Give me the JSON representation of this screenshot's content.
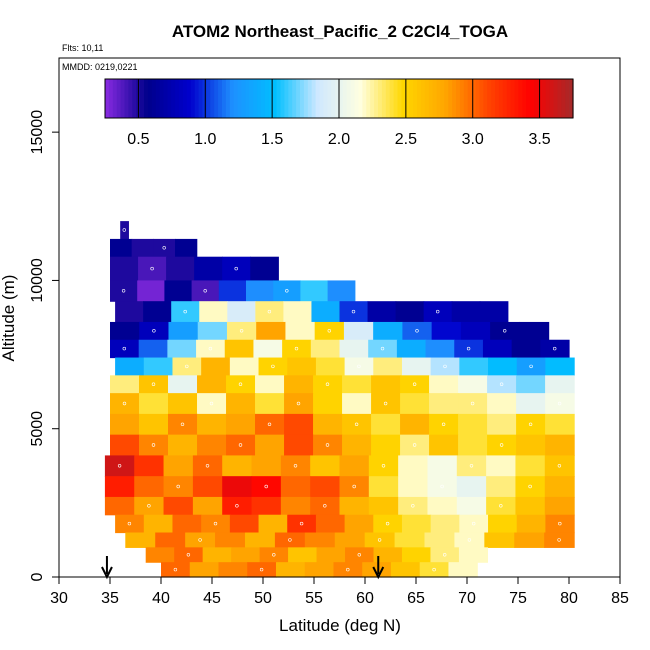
{
  "chart_data": {
    "type": "heatmap",
    "title": "ATOM2 Northeast_Pacific_2 C2Cl4_TOGA",
    "flights": "Flts: 10,11",
    "dates": "MMDD: 0219,0221",
    "xlabel": "Latitude (deg N)",
    "ylabel": "Altitude (m)",
    "xlim": [
      30,
      85
    ],
    "ylim": [
      0,
      17500
    ],
    "xticks": [
      "30",
      "35",
      "40",
      "45",
      "50",
      "55",
      "60",
      "65",
      "70",
      "75",
      "80",
      "85"
    ],
    "yticks": [
      {
        "value": 0,
        "label": "0"
      },
      {
        "value": 5000,
        "label": "5000"
      },
      {
        "value": 10000,
        "label": "10000"
      },
      {
        "value": 15000,
        "label": "15000"
      }
    ],
    "colorbar": {
      "min": 0.25,
      "max": 3.75,
      "ticks": [
        "0.5",
        "1.0",
        "1.5",
        "2.0",
        "2.5",
        "3.0",
        "3.5"
      ],
      "colors": [
        "#8a2be2",
        "#00008b",
        "#0000cd",
        "#1e90ff",
        "#00bfff",
        "#cfe8ff",
        "#ffffe0",
        "#ffd700",
        "#ffa500",
        "#ff4500",
        "#ff0000",
        "#a52a2a"
      ]
    },
    "layers": [
      {
        "alt0": 11400,
        "alt1": 12000,
        "x0": 36.0,
        "x1": 36.8,
        "values": [
          0.5
        ]
      },
      {
        "alt0": 10800,
        "alt1": 11400,
        "x0": 35.0,
        "x1": 43.5,
        "values": [
          0.6,
          0.5,
          0.5,
          0.6
        ]
      },
      {
        "alt0": 10000,
        "alt1": 10800,
        "x0": 35.0,
        "x1": 51.5,
        "values": [
          0.5,
          0.4,
          0.5,
          0.7,
          0.8,
          0.6
        ]
      },
      {
        "alt0": 9300,
        "alt1": 10000,
        "x0": 35.0,
        "x1": 59.0,
        "values": [
          0.5,
          0.3,
          0.6,
          0.4,
          1.0,
          1.2,
          1.3,
          1.6,
          1.2
        ]
      },
      {
        "alt0": 8600,
        "alt1": 9300,
        "x0": 35.5,
        "x1": 74.0,
        "values": [
          0.5,
          0.6,
          1.6,
          2.2,
          1.9,
          2.3,
          2.2,
          1.4,
          1.0,
          0.7,
          0.6,
          0.8,
          0.7,
          0.7
        ]
      },
      {
        "alt0": 8000,
        "alt1": 8600,
        "x0": 35.0,
        "x1": 78.0,
        "values": [
          0.6,
          0.8,
          1.3,
          1.7,
          2.3,
          2.8,
          2.2,
          2.5,
          1.9,
          1.4,
          1.1,
          0.9,
          0.8,
          0.6,
          0.6
        ]
      },
      {
        "alt0": 7400,
        "alt1": 8000,
        "x0": 35.0,
        "x1": 80.0,
        "values": [
          0.8,
          1.1,
          1.7,
          2.2,
          2.6,
          2.1,
          2.5,
          2.3,
          2.0,
          1.7,
          1.4,
          1.2,
          1.0,
          0.8,
          0.6,
          0.7
        ]
      },
      {
        "alt0": 6800,
        "alt1": 7400,
        "x0": 35.5,
        "x1": 80.5,
        "values": [
          1.4,
          1.6,
          2.3,
          2.7,
          2.2,
          2.5,
          2.6,
          2.4,
          2.1,
          2.3,
          2.0,
          1.8,
          1.6,
          1.5,
          1.3,
          1.5
        ]
      },
      {
        "alt0": 6200,
        "alt1": 6800,
        "x0": 35.0,
        "x1": 80.5,
        "values": [
          2.3,
          2.6,
          2.0,
          2.7,
          2.5,
          2.2,
          2.7,
          2.5,
          2.4,
          2.6,
          2.5,
          2.2,
          2.1,
          1.8,
          1.7,
          2.0
        ]
      },
      {
        "alt0": 5500,
        "alt1": 6200,
        "x0": 35.0,
        "x1": 80.5,
        "values": [
          2.7,
          2.4,
          2.6,
          2.2,
          2.7,
          2.4,
          2.8,
          2.5,
          2.2,
          2.6,
          2.4,
          2.3,
          2.3,
          2.2,
          2.0,
          2.1
        ]
      },
      {
        "alt0": 4800,
        "alt1": 5500,
        "x0": 35.0,
        "x1": 80.5,
        "values": [
          2.8,
          2.6,
          2.9,
          2.7,
          2.8,
          3.0,
          3.1,
          2.7,
          2.6,
          2.4,
          2.7,
          2.5,
          2.4,
          2.3,
          2.5,
          2.4
        ]
      },
      {
        "alt0": 4100,
        "alt1": 4800,
        "x0": 35.0,
        "x1": 80.5,
        "values": [
          3.1,
          2.9,
          2.7,
          2.9,
          3.0,
          2.8,
          3.1,
          2.9,
          2.7,
          2.5,
          2.3,
          2.6,
          2.4,
          2.5,
          2.6,
          2.7
        ]
      },
      {
        "alt0": 3400,
        "alt1": 4100,
        "x0": 34.5,
        "x1": 80.5,
        "values": [
          3.6,
          3.2,
          2.8,
          3.0,
          2.7,
          2.8,
          2.9,
          2.6,
          2.8,
          2.5,
          2.2,
          2.1,
          2.3,
          2.2,
          2.4,
          2.6
        ]
      },
      {
        "alt0": 2700,
        "alt1": 3400,
        "x0": 34.5,
        "x1": 80.5,
        "values": [
          3.3,
          3.0,
          2.9,
          3.1,
          3.5,
          3.4,
          3.0,
          3.1,
          2.9,
          2.4,
          2.2,
          2.1,
          2.0,
          2.3,
          2.5,
          2.7
        ]
      },
      {
        "alt0": 2100,
        "alt1": 2700,
        "x0": 34.5,
        "x1": 80.5,
        "values": [
          3.0,
          2.8,
          3.1,
          2.8,
          3.3,
          3.2,
          2.9,
          3.0,
          2.7,
          2.6,
          2.3,
          2.2,
          2.1,
          2.4,
          2.6,
          2.8
        ]
      },
      {
        "alt0": 1500,
        "alt1": 2100,
        "x0": 35.5,
        "x1": 80.5,
        "values": [
          2.9,
          2.7,
          3.0,
          2.9,
          3.1,
          2.7,
          3.2,
          3.0,
          2.8,
          2.5,
          2.4,
          2.3,
          2.2,
          2.5,
          2.7,
          2.9
        ]
      },
      {
        "alt0": 1000,
        "alt1": 1500,
        "x0": 36.5,
        "x1": 80.5,
        "values": [
          2.7,
          3.0,
          2.8,
          2.9,
          2.7,
          3.0,
          2.9,
          2.8,
          2.6,
          2.4,
          2.3,
          2.2,
          2.6,
          2.8,
          2.9
        ]
      },
      {
        "alt0": 500,
        "alt1": 1000,
        "x0": 38.5,
        "x1": 72.0,
        "values": [
          2.9,
          3.0,
          2.7,
          2.8,
          2.9,
          2.6,
          2.8,
          2.9,
          2.7,
          2.5,
          2.3,
          2.2
        ]
      },
      {
        "alt0": 0,
        "alt1": 500,
        "x0": 40.0,
        "x1": 71.0,
        "values": [
          3.0,
          2.8,
          2.9,
          3.0,
          2.7,
          2.8,
          2.9,
          2.8,
          2.6,
          2.4,
          2.2
        ]
      }
    ],
    "markers": [
      {
        "lat": 34.7,
        "label": "arrow"
      },
      {
        "lat": 61.3,
        "label": "arrow"
      }
    ]
  }
}
